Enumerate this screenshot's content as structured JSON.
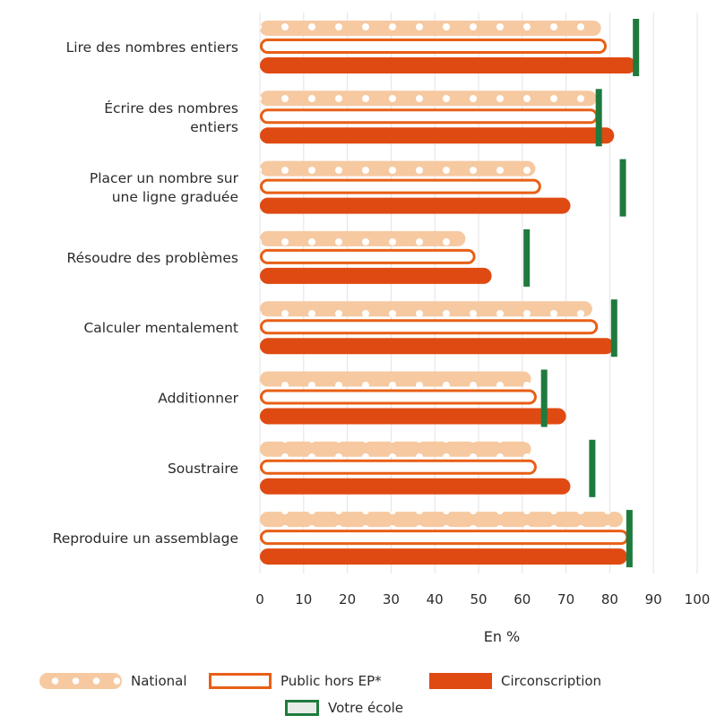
{
  "chart_data": {
    "type": "bar",
    "orientation": "horizontal",
    "categories": [
      "Lire des nombres entiers",
      "Écrire des nombres entiers",
      "Placer un nombre sur une ligne graduée",
      "Résoudre des problèmes",
      "Calculer mentalement",
      "Additionner",
      "Soustraire",
      "Reproduire un assemblage"
    ],
    "category_lines": [
      [
        "Lire des nombres entiers"
      ],
      [
        "Écrire des nombres",
        "entiers"
      ],
      [
        "Placer un nombre sur",
        "une ligne graduée"
      ],
      [
        "Résoudre des problèmes"
      ],
      [
        "Calculer mentalement"
      ],
      [
        "Additionner"
      ],
      [
        "Soustraire"
      ],
      [
        "Reproduire un assemblage"
      ]
    ],
    "series": [
      {
        "name": "National",
        "values": [
          78,
          77,
          63,
          47,
          76,
          62,
          62,
          83
        ],
        "color": "#f6c9a1"
      },
      {
        "name": "Public hors EP*",
        "values": [
          79,
          77,
          64,
          49,
          77,
          63,
          63,
          84
        ],
        "color": "#e85f15"
      },
      {
        "name": "Circonscription",
        "values": [
          86,
          81,
          71,
          53,
          81,
          70,
          71,
          84
        ],
        "color": "#df4a12"
      }
    ],
    "marker": {
      "name": "Votre école",
      "values": [
        86,
        77.5,
        83,
        61,
        81,
        65,
        76,
        84.5
      ],
      "color": "#1f7a3d"
    },
    "xlabel": "En %",
    "xticks": [
      0,
      10,
      20,
      30,
      40,
      50,
      60,
      70,
      80,
      90,
      100
    ],
    "xlim": [
      0,
      100
    ],
    "grid": true,
    "legend_position": "bottom"
  },
  "legend": {
    "national": "National",
    "public": "Public hors EP*",
    "circ": "Circonscription",
    "ecole": "Votre école"
  }
}
